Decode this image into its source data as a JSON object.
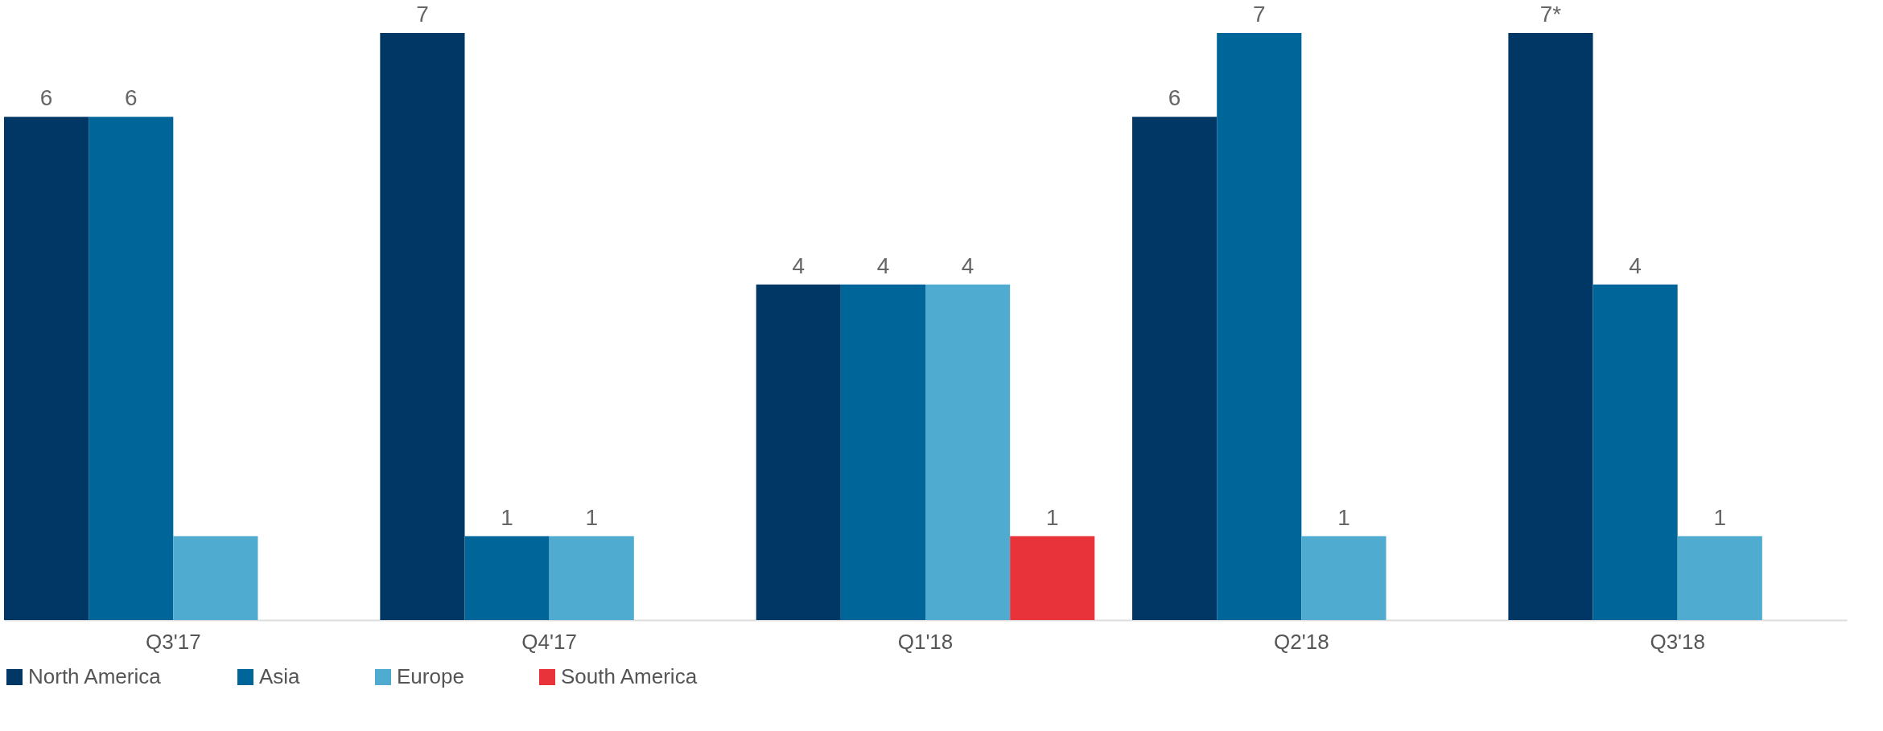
{
  "chart_data": {
    "type": "bar",
    "categories": [
      "Q3'17",
      "Q4'17",
      "Q1'18",
      "Q2'18",
      "Q3'18"
    ],
    "series": [
      {
        "name": "North America",
        "color": "#003764",
        "values": [
          6,
          7,
          4,
          6,
          7
        ],
        "value_labels": [
          "6",
          "7",
          "4",
          "6",
          "7*"
        ]
      },
      {
        "name": "Asia",
        "color": "#006699",
        "values": [
          6,
          1,
          4,
          7,
          4
        ],
        "value_labels": [
          "6",
          "1",
          "4",
          "7",
          "4"
        ]
      },
      {
        "name": "Europe",
        "color": "#4fabd0",
        "values": [
          1,
          1,
          4,
          1,
          1
        ],
        "value_labels": [
          null,
          "1",
          "4",
          "1",
          "1"
        ]
      },
      {
        "name": "South America",
        "color": "#e8333b",
        "values": [
          null,
          null,
          1,
          null,
          null
        ],
        "value_labels": [
          null,
          null,
          "1",
          null,
          null
        ]
      }
    ],
    "legend": "bottom",
    "grid": false
  }
}
